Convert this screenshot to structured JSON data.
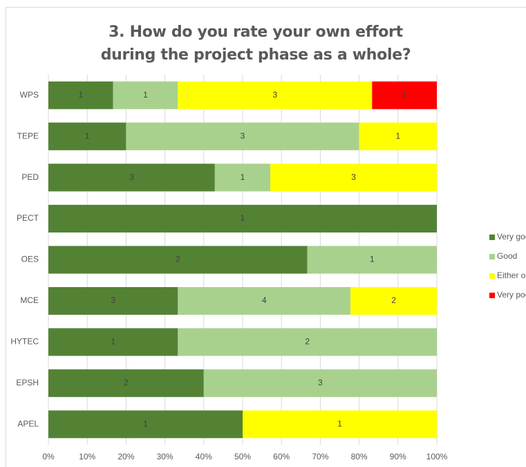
{
  "chart_data": {
    "type": "stacked-bar-100",
    "title": "3. How do you rate your own effort during the project phase as a whole?",
    "categories": [
      "WPS",
      "TEPE",
      "PED",
      "PECT",
      "OES",
      "MCE",
      "HYTEC",
      "EPSH",
      "APEL"
    ],
    "series": [
      {
        "name": "Very good",
        "color": "#548235",
        "values": [
          1,
          1,
          3,
          1,
          2,
          3,
          1,
          2,
          1
        ]
      },
      {
        "name": "Good",
        "color": "#a9d18e",
        "values": [
          1,
          3,
          1,
          null,
          1,
          4,
          2,
          3,
          null
        ]
      },
      {
        "name": "Either or",
        "color": "#ffff00",
        "values": [
          3,
          1,
          3,
          null,
          null,
          2,
          null,
          null,
          1
        ]
      },
      {
        "name": "Very poor",
        "color": "#ff0000",
        "values": [
          1,
          null,
          null,
          null,
          null,
          null,
          null,
          null,
          null
        ]
      }
    ],
    "xlim": [
      0,
      100
    ],
    "xticks": [
      {
        "value": 0,
        "label": "0%"
      },
      {
        "value": 10,
        "label": "10%"
      },
      {
        "value": 20,
        "label": "20%"
      },
      {
        "value": 30,
        "label": "30%"
      },
      {
        "value": 40,
        "label": "40%"
      },
      {
        "value": 50,
        "label": "50%"
      },
      {
        "value": 60,
        "label": "60%"
      },
      {
        "value": 70,
        "label": "70%"
      },
      {
        "value": 80,
        "label": "80%"
      },
      {
        "value": 90,
        "label": "90%"
      },
      {
        "value": 100,
        "label": "100%"
      }
    ],
    "grid": true,
    "legend": "right"
  }
}
